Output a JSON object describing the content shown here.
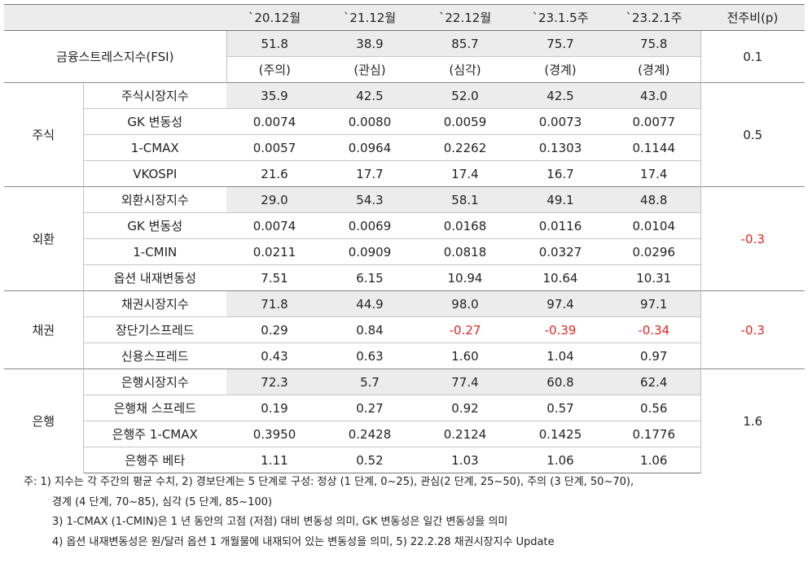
{
  "header": {
    "cols": [
      "`20.12월",
      "`21.12월",
      "`22.12월",
      "`23.1.5주",
      "`23.2.1주"
    ],
    "wow": "전주비(p)"
  },
  "fsi": {
    "label": "금융스트레스지수(FSI)",
    "values": [
      "51.8",
      "38.9",
      "85.7",
      "75.7",
      "75.8"
    ],
    "stages": [
      "(주의)",
      "(관심)",
      "(심각)",
      "(경계)",
      "(경계)"
    ],
    "wow": "0.1"
  },
  "groups": [
    {
      "name": "주식",
      "wow": "0.5",
      "rows": [
        {
          "label": "주식시장지수",
          "values": [
            "35.9",
            "42.5",
            "52.0",
            "42.5",
            "43.0"
          ]
        },
        {
          "label": "GK 변동성",
          "values": [
            "0.0074",
            "0.0080",
            "0.0059",
            "0.0073",
            "0.0077"
          ]
        },
        {
          "label": "1-CMAX",
          "values": [
            "0.0057",
            "0.0964",
            "0.2262",
            "0.1303",
            "0.1144"
          ]
        },
        {
          "label": "VKOSPI",
          "values": [
            "21.6",
            "17.7",
            "17.4",
            "16.7",
            "17.4"
          ]
        }
      ]
    },
    {
      "name": "외환",
      "wow": "-0.3",
      "rows": [
        {
          "label": "외환시장지수",
          "values": [
            "29.0",
            "54.3",
            "58.1",
            "49.1",
            "48.8"
          ]
        },
        {
          "label": "GK 변동성",
          "values": [
            "0.0074",
            "0.0069",
            "0.0168",
            "0.0116",
            "0.0104"
          ]
        },
        {
          "label": "1-CMIN",
          "values": [
            "0.0211",
            "0.0909",
            "0.0818",
            "0.0327",
            "0.0296"
          ]
        },
        {
          "label": "옵션 내재변동성",
          "values": [
            "7.51",
            "6.15",
            "10.94",
            "10.64",
            "10.31"
          ]
        }
      ]
    },
    {
      "name": "채권",
      "wow": "-0.3",
      "rows": [
        {
          "label": "채권시장지수",
          "values": [
            "71.8",
            "44.9",
            "98.0",
            "97.4",
            "97.1"
          ]
        },
        {
          "label": "장단기스프레드",
          "values": [
            "0.29",
            "0.84",
            "-0.27",
            "-0.39",
            "-0.34"
          ]
        },
        {
          "label": "신용스프레드",
          "values": [
            "0.43",
            "0.63",
            "1.60",
            "1.04",
            "0.97"
          ]
        }
      ]
    },
    {
      "name": "은행",
      "wow": "1.6",
      "rows": [
        {
          "label": "은행시장지수",
          "values": [
            "72.3",
            "5.7",
            "77.4",
            "60.8",
            "62.4"
          ]
        },
        {
          "label": "은행채 스프레드",
          "values": [
            "0.19",
            "0.27",
            "0.92",
            "0.57",
            "0.56"
          ]
        },
        {
          "label": "은행주 1-CMAX",
          "values": [
            "0.3950",
            "0.2428",
            "0.2124",
            "0.1425",
            "0.1776"
          ]
        },
        {
          "label": "은행주 베타",
          "values": [
            "1.11",
            "0.52",
            "1.03",
            "1.06",
            "1.06"
          ]
        }
      ]
    }
  ],
  "notes": [
    "주: 1) 지수는 각 주간의 평균 수치, 2) 경보단계는 5 단계로 구성: 정상 (1 단계, 0~25), 관심(2 단계, 25~50), 주의 (3 단계, 50~70),",
    "경계 (4 단계, 70~85), 심각 (5 단계, 85~100)",
    "3) 1-CMAX (1-CMIN)은 1 년 동안의 고점 (저점) 대비 변동성 의미, GK 변동성은 일간 변동성을 의미",
    "4) 옵션 내재변동성은 원/달러 옵션 1 개월물에 내재되어 있는 변동성을 의미, 5) 22.2.28 채권시장지수 Update"
  ],
  "colors": {
    "negative": "#e0261f",
    "shade": "#ececec"
  }
}
